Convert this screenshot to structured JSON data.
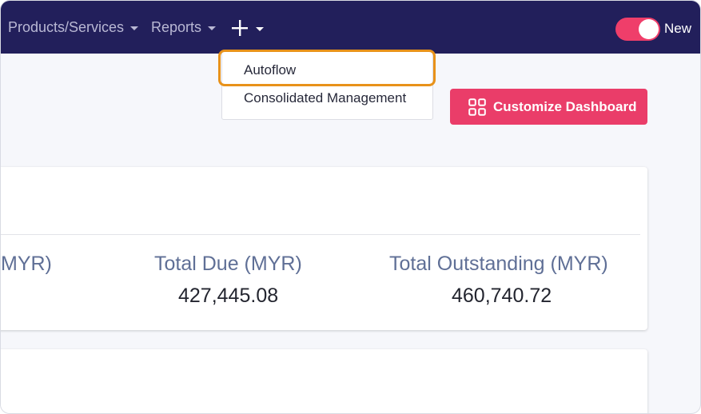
{
  "nav": {
    "items": [
      {
        "label": "Products/Services"
      },
      {
        "label": "Reports"
      }
    ],
    "toggle_label": "New"
  },
  "dropdown": {
    "items": [
      {
        "label": "Autoflow"
      },
      {
        "label": "Consolidated Management"
      }
    ]
  },
  "actions": {
    "customize_label": "Customize Dashboard"
  },
  "summary": {
    "partial_label": "MYR)",
    "total_due": {
      "label": "Total Due (MYR)",
      "value": "427,445.08"
    },
    "total_outstanding": {
      "label": "Total Outstanding (MYR)",
      "value": "460,740.72"
    }
  },
  "colors": {
    "nav_bg": "#221f5b",
    "accent": "#ea3d69",
    "highlight": "#e8921a"
  },
  "icons": [
    "plus-icon",
    "chevron-down-icon",
    "grid-icon"
  ]
}
